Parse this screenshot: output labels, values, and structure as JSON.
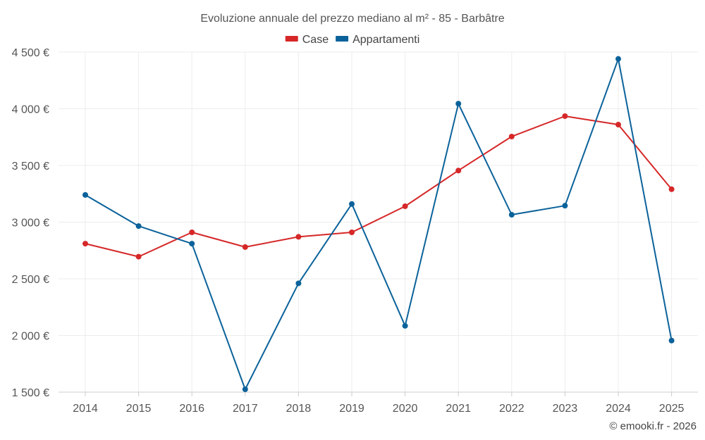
{
  "chart_data": {
    "type": "line",
    "title": "Evoluzione annuale del prezzo mediano al m² - 85 - Barbâtre",
    "categories": [
      "2014",
      "2015",
      "2016",
      "2017",
      "2018",
      "2019",
      "2020",
      "2021",
      "2022",
      "2023",
      "2024",
      "2025"
    ],
    "series": [
      {
        "name": "Case",
        "color": "#d62728",
        "values": [
          2810,
          2695,
          2910,
          2780,
          2870,
          2910,
          3140,
          3455,
          3755,
          3935,
          3860,
          3290
        ]
      },
      {
        "name": "Appartamenti",
        "color": "#0b629a",
        "values": [
          3240,
          2965,
          2810,
          1525,
          2460,
          3160,
          2085,
          4045,
          3065,
          3145,
          4440,
          1955
        ]
      }
    ],
    "ylim": [
      1500,
      4500
    ],
    "yticks": [
      1500,
      2000,
      2500,
      3000,
      3500,
      4000,
      4500
    ],
    "ytick_labels": [
      "1 500 €",
      "2 000 €",
      "2 500 €",
      "3 000 €",
      "3 500 €",
      "4 000 €",
      "4 500 €"
    ],
    "grid": true,
    "legend": "top-center",
    "xlabel": "",
    "ylabel": ""
  },
  "credit": "© emooki.fr - 2026"
}
